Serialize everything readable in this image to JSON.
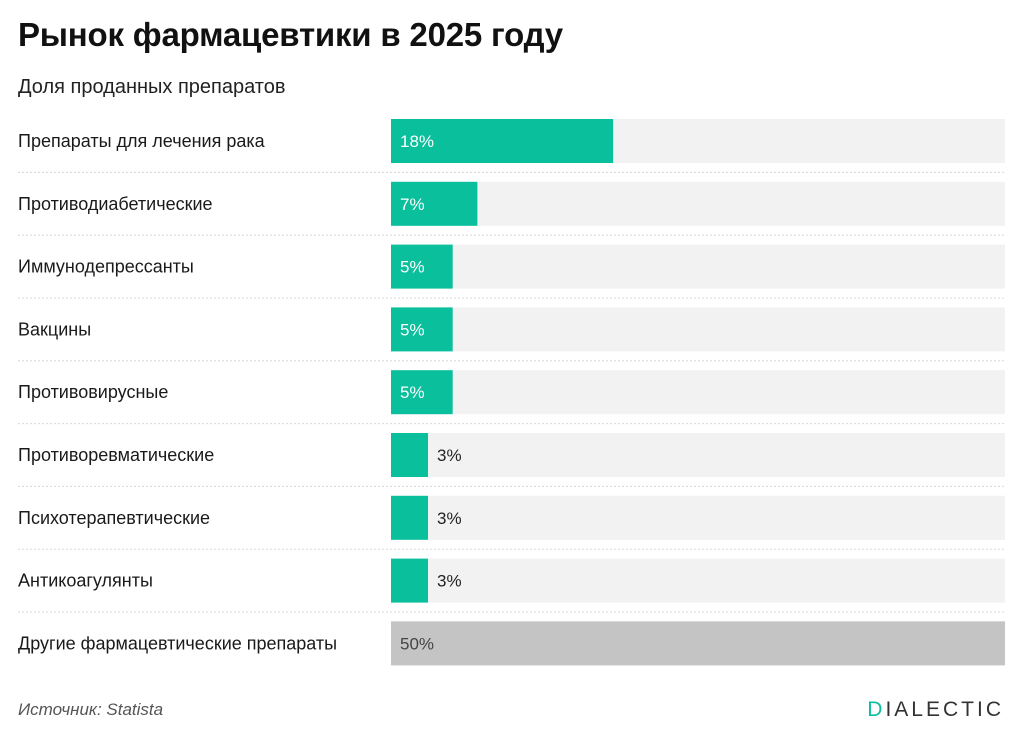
{
  "header": {
    "title": "Рынок фармацевтики в 2025 году",
    "subtitle": "Доля проданных препаратов"
  },
  "footer": {
    "source": "Источник: Statista",
    "logo_first": "D",
    "logo_rest": "IALECTIC"
  },
  "colors": {
    "accent": "#0abf9c",
    "other": "#c4c4c4",
    "track": "#f2f2f2",
    "divider": "#d8d8d8"
  },
  "chart_data": {
    "type": "bar",
    "orientation": "horizontal",
    "title": "Рынок фармацевтики в 2025 году",
    "subtitle": "Доля проданных препаратов",
    "xlim": [
      0,
      50
    ],
    "grid": false,
    "categories": [
      "Препараты для лечения рака",
      "Противодиабетические",
      "Иммунодепрессанты",
      "Вакцины",
      "Противовирусные",
      "Противоревматические",
      "Психотерапевтические",
      "Антикоагулянты",
      "Другие фармацевтические препараты"
    ],
    "values": [
      18,
      7,
      5,
      5,
      5,
      3,
      3,
      3,
      50
    ],
    "value_labels": [
      "18%",
      "7%",
      "5%",
      "5%",
      "5%",
      "3%",
      "3%",
      "3%",
      "50%"
    ],
    "highlight": [
      true,
      true,
      true,
      true,
      true,
      true,
      true,
      true,
      false
    ]
  }
}
